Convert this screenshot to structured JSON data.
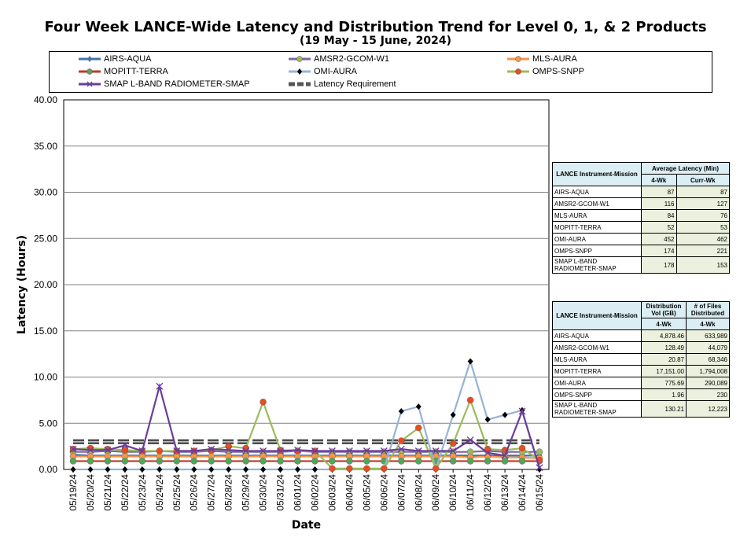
{
  "chart_data": {
    "type": "line",
    "title": "Four Week LANCE-Wide Latency and Distribution Trend for Level 0, 1, & 2 Products",
    "subtitle": "(19  May   - 15  June,  2024)",
    "xlabel": "Date",
    "ylabel": "Latency (Hours)",
    "ylim": [
      0,
      40
    ],
    "yticks": [
      "0.00",
      "5.00",
      "10.00",
      "15.00",
      "20.00",
      "25.00",
      "30.00",
      "35.00",
      "40.00"
    ],
    "grid": true,
    "legend_position": "top",
    "categories": [
      "05/19/24",
      "05/20/24",
      "05/21/24",
      "05/22/24",
      "05/23/24",
      "05/24/24",
      "05/25/24",
      "05/26/24",
      "05/27/24",
      "05/28/24",
      "05/29/24",
      "05/30/24",
      "05/31/24",
      "06/01/24",
      "06/02/24",
      "06/03/24",
      "06/04/24",
      "06/05/24",
      "06/06/24",
      "06/07/24",
      "06/08/24",
      "06/09/24",
      "06/10/24",
      "06/11/24",
      "06/12/24",
      "06/13/24",
      "06/14/24",
      "06/15/24"
    ],
    "series": [
      {
        "name": "AIRS-AQUA",
        "color": "#4472a8",
        "marker": "diamond",
        "values": [
          1.6,
          1.5,
          1.5,
          1.5,
          1.5,
          1.5,
          1.5,
          1.5,
          1.5,
          1.5,
          1.5,
          1.5,
          1.5,
          1.5,
          1.5,
          1.5,
          1.5,
          1.5,
          1.5,
          1.5,
          1.5,
          1.5,
          1.5,
          1.5,
          1.5,
          1.5,
          1.5,
          1.5
        ]
      },
      {
        "name": "AMSR2-GCOM-W1",
        "color": "#8064a2",
        "marker": "circle",
        "markerColor": "#9bbb59",
        "values": [
          1.9,
          1.9,
          2.0,
          1.9,
          1.9,
          2.0,
          1.9,
          1.9,
          2.0,
          1.9,
          1.9,
          1.9,
          1.9,
          2.0,
          1.9,
          1.9,
          1.9,
          1.9,
          1.9,
          1.9,
          1.9,
          1.9,
          1.9,
          1.9,
          2.0,
          1.9,
          1.9,
          1.9
        ]
      },
      {
        "name": "MLS-AURA",
        "color": "#f79646",
        "marker": "circle",
        "values": [
          1.4,
          1.4,
          1.4,
          1.4,
          1.4,
          1.4,
          1.4,
          1.4,
          1.4,
          1.4,
          1.4,
          1.4,
          1.4,
          1.4,
          1.4,
          1.4,
          1.4,
          1.4,
          1.4,
          1.4,
          1.4,
          1.4,
          1.4,
          1.3,
          1.4,
          1.3,
          1.3,
          1.2
        ]
      },
      {
        "name": "MOPITT-TERRA",
        "color": "#c0392b",
        "marker": "circle",
        "markerColor": "#4ea85a",
        "values": [
          0.9,
          0.9,
          0.9,
          0.9,
          0.9,
          0.9,
          0.9,
          0.9,
          0.9,
          0.9,
          0.9,
          0.9,
          0.9,
          0.9,
          0.9,
          0.9,
          0.9,
          0.9,
          0.9,
          0.9,
          0.9,
          0.9,
          0.9,
          0.9,
          0.9,
          0.9,
          0.9,
          0.9
        ]
      },
      {
        "name": "OMI-AURA",
        "color": "#95b3d7",
        "marker": "diamond",
        "markerColor": "#000000",
        "values": [
          0.0,
          0.0,
          0.0,
          0.0,
          0.0,
          0.0,
          0.0,
          0.0,
          0.0,
          0.0,
          0.0,
          0.0,
          0.0,
          0.0,
          0.0,
          0.0,
          0.0,
          0.0,
          0.0,
          6.3,
          6.8,
          0.0,
          5.9,
          11.7,
          5.4,
          5.9,
          6.4,
          0.0
        ]
      },
      {
        "name": "OMPS-SNPP",
        "color": "#9bbb59",
        "marker": "circle",
        "markerColor": "#e84c22",
        "values": [
          2.2,
          2.3,
          2.2,
          2.1,
          2.0,
          2.0,
          2.0,
          2.0,
          2.1,
          2.5,
          2.3,
          7.3,
          2.1,
          2.0,
          2.0,
          0.1,
          0.1,
          0.1,
          0.1,
          3.1,
          4.5,
          0.1,
          2.8,
          7.5,
          2.2,
          2.1,
          2.3,
          1.0
        ]
      },
      {
        "name": "SMAP L-BAND RADIOMETER-SMAP",
        "color": "#6a3d9a",
        "marker": "x",
        "values": [
          2.2,
          2.1,
          2.1,
          2.6,
          2.0,
          9.0,
          2.0,
          2.0,
          2.2,
          2.1,
          2.0,
          2.0,
          2.0,
          2.1,
          2.0,
          2.0,
          2.0,
          2.0,
          2.0,
          2.2,
          2.0,
          2.0,
          2.0,
          3.2,
          1.8,
          1.5,
          6.3,
          0.2
        ]
      },
      {
        "name": "Latency Requirement",
        "color": "#555555",
        "dashed": true,
        "values": [
          3.0,
          3.0,
          3.0,
          3.0,
          3.0,
          3.0,
          3.0,
          3.0,
          3.0,
          3.0,
          3.0,
          3.0,
          3.0,
          3.0,
          3.0,
          3.0,
          3.0,
          3.0,
          3.0,
          3.0,
          3.0,
          3.0,
          3.0,
          3.0,
          3.0,
          3.0,
          3.0,
          3.0
        ]
      }
    ]
  },
  "table1": {
    "h1": "LANCE Instrument-Mission",
    "h2": "Average Latency (Min)",
    "h3": "4-Wk",
    "h4": "Curr-Wk",
    "rows": [
      {
        "name": "AIRS-AQUA",
        "a": "87",
        "b": "87"
      },
      {
        "name": "AMSR2-GCOM-W1",
        "a": "116",
        "b": "127"
      },
      {
        "name": "MLS-AURA",
        "a": "84",
        "b": "76"
      },
      {
        "name": "MOPITT-TERRA",
        "a": "52",
        "b": "53"
      },
      {
        "name": "OMI-AURA",
        "a": "452",
        "b": "462"
      },
      {
        "name": "OMPS-SNPP",
        "a": "174",
        "b": "221"
      },
      {
        "name": "SMAP L-BAND RADIOMETER-SMAP",
        "a": "178",
        "b": "153"
      }
    ]
  },
  "table2": {
    "h1": "LANCE Instrument-Mission",
    "h2": "Distribution Vol (GB)",
    "h3": "# of Files Distributed",
    "h4": "4-Wk",
    "h5": "4-Wk",
    "rows": [
      {
        "name": "AIRS-AQUA",
        "a": "4,878.46",
        "b": "633,989"
      },
      {
        "name": "AMSR2-GCOM-W1",
        "a": "128.49",
        "b": "44,079"
      },
      {
        "name": "MLS-AURA",
        "a": "20.87",
        "b": "68,346"
      },
      {
        "name": "MOPITT-TERRA",
        "a": "17,151.00",
        "b": "1,794,008"
      },
      {
        "name": "OMI-AURA",
        "a": "775.69",
        "b": "290,089"
      },
      {
        "name": "OMPS-SNPP",
        "a": "1.96",
        "b": "230"
      },
      {
        "name": "SMAP L-BAND RADIOMETER-SMAP",
        "a": "130.21",
        "b": "12,223"
      }
    ]
  }
}
